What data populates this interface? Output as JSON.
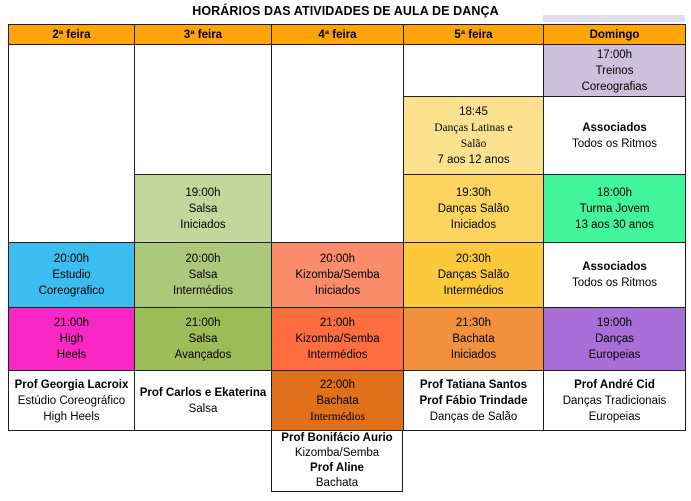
{
  "title": "HORÁRIOS DAS ATIVIDADES DE AULA DE DANÇA",
  "colors": {
    "header_bg": "#FFA407",
    "border": "#1f1f1f",
    "lavender_light": "#CCC0DA",
    "pale_yellow": "#FCE28E",
    "gold_light": "#FCD45F",
    "gold": "#FBC93C",
    "orange": "#F2913D",
    "spring_green": "#42F59A",
    "green_light": "#C3D69B",
    "olive_mid": "#ACC97B",
    "olive": "#9CBB59",
    "sky_blue": "#3DBDEF",
    "magenta": "#F928C4",
    "salmon": "#F98C6B",
    "tomato": "#FC6E3F",
    "dark_orange": "#E1701A",
    "purple": "#A96FD8",
    "white": "#FFFFFF"
  },
  "columns": [
    {
      "label": "2ª feira"
    },
    {
      "label": "3ª feira"
    },
    {
      "label": "4ª feira"
    },
    {
      "label": "5ª feira"
    },
    {
      "label": "Domingo"
    }
  ],
  "cells": [
    {
      "name": "cell-2feira-empty",
      "col": 1,
      "row": 1,
      "rowspan": 3,
      "bg": "#FFFFFF",
      "lines": []
    },
    {
      "name": "cell-3feira-empty",
      "col": 2,
      "row": 1,
      "rowspan": 2,
      "bg": "#FFFFFF",
      "lines": []
    },
    {
      "name": "cell-4feira-empty",
      "col": 3,
      "row": 1,
      "rowspan": 3,
      "bg": "#FFFFFF",
      "lines": []
    },
    {
      "name": "cell-5feira-empty",
      "col": 4,
      "row": 1,
      "rowspan": 1,
      "bg": "#FFFFFF",
      "lines": []
    },
    {
      "name": "cell-domingo-treinos-17h",
      "col": 5,
      "row": 1,
      "bg": "#CCC0DA",
      "lines": [
        {
          "t": "17:00h"
        },
        {
          "t": "Treinos"
        },
        {
          "t": "Coreografias"
        }
      ]
    },
    {
      "name": "cell-5feira-dancas-latinas-1845",
      "col": 4,
      "row": 2,
      "bg": "#FCE28E",
      "lines": [
        {
          "t": "18:45"
        },
        {
          "t": "Danças Latinas e",
          "s": true
        },
        {
          "t": "Salão",
          "s": true
        },
        {
          "t": "7 aos 12 anos"
        }
      ]
    },
    {
      "name": "cell-domingo-associados-1",
      "col": 5,
      "row": 2,
      "bg": "#FFFFFF",
      "lines": [
        {
          "t": "Associados",
          "b": true
        },
        {
          "t": "Todos os Ritmos"
        }
      ]
    },
    {
      "name": "cell-3feira-salsa-iniciados-19h",
      "col": 2,
      "row": 3,
      "bg": "#C3D69B",
      "lines": [
        {
          "t": "19:00h"
        },
        {
          "t": "Salsa"
        },
        {
          "t": "Iniciados"
        }
      ]
    },
    {
      "name": "cell-5feira-dancas-salao-iniciados-1930",
      "col": 4,
      "row": 3,
      "bg": "#FCD45F",
      "lines": [
        {
          "t": "19:30h"
        },
        {
          "t": "Danças Salão"
        },
        {
          "t": "Iniciados"
        }
      ]
    },
    {
      "name": "cell-domingo-turma-jovem-18h",
      "col": 5,
      "row": 3,
      "bg": "#42F59A",
      "lines": [
        {
          "t": "18:00h"
        },
        {
          "t": "Turma Jovem"
        },
        {
          "t": "13 aos 30 anos"
        }
      ]
    },
    {
      "name": "cell-2feira-estudio-coreografico-20h",
      "col": 1,
      "row": 4,
      "bg": "#3DBDEF",
      "lines": [
        {
          "t": "20:00h"
        },
        {
          "t": "Estudio"
        },
        {
          "t": "Coreografico"
        }
      ]
    },
    {
      "name": "cell-3feira-salsa-intermedios-20h",
      "col": 2,
      "row": 4,
      "bg": "#ACC97B",
      "lines": [
        {
          "t": "20:00h"
        },
        {
          "t": "Salsa"
        },
        {
          "t": "Intermédios"
        }
      ]
    },
    {
      "name": "cell-4feira-kizomba-iniciados-20h",
      "col": 3,
      "row": 4,
      "bg": "#F98C6B",
      "lines": [
        {
          "t": "20:00h"
        },
        {
          "t": "Kizomba/Semba"
        },
        {
          "t": "Iniciados"
        }
      ]
    },
    {
      "name": "cell-5feira-dancas-salao-intermedios-2030",
      "col": 4,
      "row": 4,
      "bg": "#FBC93C",
      "lines": [
        {
          "t": "20:30h"
        },
        {
          "t": "Danças Salão"
        },
        {
          "t": "Intermédios"
        }
      ]
    },
    {
      "name": "cell-domingo-associados-2",
      "col": 5,
      "row": 4,
      "bg": "#FFFFFF",
      "lines": [
        {
          "t": "Associados",
          "b": true
        },
        {
          "t": "Todos os Ritmos"
        }
      ]
    },
    {
      "name": "cell-2feira-high-heels-21h",
      "col": 1,
      "row": 5,
      "bg": "#F928C4",
      "lines": [
        {
          "t": "21:00h"
        },
        {
          "t": "High"
        },
        {
          "t": "Heels"
        }
      ]
    },
    {
      "name": "cell-3feira-salsa-avancados-21h",
      "col": 2,
      "row": 5,
      "bg": "#9CBB59",
      "lines": [
        {
          "t": "21:00h"
        },
        {
          "t": "Salsa"
        },
        {
          "t": "Avançados"
        }
      ]
    },
    {
      "name": "cell-4feira-kizomba-intermedios-21h",
      "col": 3,
      "row": 5,
      "bg": "#FC6E3F",
      "lines": [
        {
          "t": "21:00h"
        },
        {
          "t": "Kizomba/Semba"
        },
        {
          "t": "Intermédios"
        }
      ]
    },
    {
      "name": "cell-5feira-bachata-iniciados-2130",
      "col": 4,
      "row": 5,
      "bg": "#F2913D",
      "lines": [
        {
          "t": "21:30h"
        },
        {
          "t": "Bachata"
        },
        {
          "t": "Iniciados"
        }
      ]
    },
    {
      "name": "cell-domingo-dancas-europeias-19h",
      "col": 5,
      "row": 5,
      "bg": "#A96FD8",
      "lines": [
        {
          "t": "19:00h"
        },
        {
          "t": "Danças"
        },
        {
          "t": "Europeias"
        }
      ]
    },
    {
      "name": "cell-2feira-prof",
      "col": 1,
      "row": 6,
      "bg": "#FFFFFF",
      "lines": [
        {
          "t": "Prof Georgia Lacroix",
          "b": true
        },
        {
          "t": "Estúdio Coreográfico"
        },
        {
          "t": "High Heels"
        }
      ]
    },
    {
      "name": "cell-3feira-prof",
      "col": 2,
      "row": 6,
      "bg": "#FFFFFF",
      "lines": [
        {
          "t": "Prof Carlos e Ekaterina",
          "b": true
        },
        {
          "t": "Salsa"
        }
      ]
    },
    {
      "name": "cell-4feira-bachata-22h",
      "col": 3,
      "row": 6,
      "bg": "#E1701A",
      "lines": [
        {
          "t": "22:00h"
        },
        {
          "t": "Bachata"
        },
        {
          "t": "Intermédios",
          "s": true
        }
      ]
    },
    {
      "name": "cell-5feira-prof",
      "col": 4,
      "row": 6,
      "bg": "#FFFFFF",
      "lines": [
        {
          "t": "Prof Tatiana Santos",
          "b": true
        },
        {
          "t": "Prof Fábio Trindade",
          "b": true
        },
        {
          "t": "Danças de Salão"
        }
      ]
    },
    {
      "name": "cell-domingo-prof",
      "col": 5,
      "row": 6,
      "bg": "#FFFFFF",
      "lines": [
        {
          "t": "Prof André Cid",
          "b": true
        },
        {
          "t": "Danças Tradicionais"
        },
        {
          "t": "Europeias"
        }
      ]
    }
  ],
  "footer_cell": {
    "name": "cell-4feira-prof",
    "lines": [
      {
        "t": "Prof Bonifácio Aurio",
        "b": true
      },
      {
        "t": "Kizomba/Semba"
      },
      {
        "t": "Prof Aline",
        "b": true
      },
      {
        "t": "Bachata"
      }
    ]
  }
}
